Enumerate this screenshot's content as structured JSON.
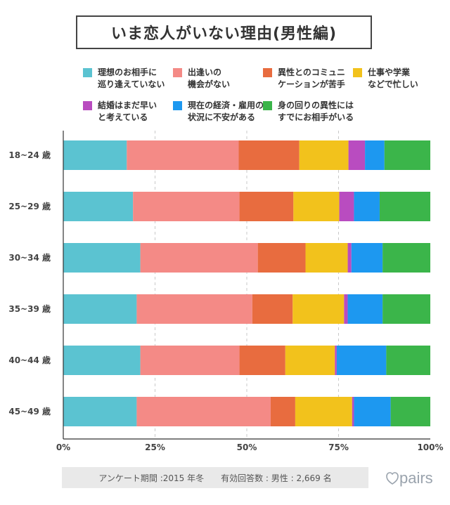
{
  "title": "いま恋人がいない理由(男性編)",
  "legend": [
    {
      "label": "理想のお相手に\n巡り逢えていない",
      "color": "#5bc3d1"
    },
    {
      "label": "出逢いの\n機会がない",
      "color": "#f48a86"
    },
    {
      "label": "異性とのコミュニ\nケーションが苦手",
      "color": "#e86c3f"
    },
    {
      "label": "仕事や学業\nなどで忙しい",
      "color": "#f2c21c"
    },
    {
      "label": "結婚はまだ早い\nと考えている",
      "color": "#b94cc0"
    },
    {
      "label": "現在の経済・雇用の\n状況に不安がある",
      "color": "#1d98f0"
    },
    {
      "label": "身の回りの異性には\nすでにお相手がいる",
      "color": "#3bb54a"
    }
  ],
  "chart_data": {
    "type": "bar",
    "orientation": "horizontal",
    "stacked": true,
    "categories": [
      "18~24 歳",
      "25~29 歳",
      "30~34 歳",
      "35~39 歳",
      "40~44 歳",
      "45~49 歳"
    ],
    "series": [
      {
        "name": "理想のお相手に巡り逢えていない",
        "values": [
          17.3,
          19.0,
          21.0,
          20.0,
          21.0,
          20.0
        ]
      },
      {
        "name": "出逢いの機会がない",
        "values": [
          30.5,
          29.0,
          32.0,
          31.5,
          27.0,
          36.5
        ]
      },
      {
        "name": "異性とのコミュニケーションが苦手",
        "values": [
          16.5,
          14.7,
          13.0,
          11.0,
          12.5,
          6.7
        ]
      },
      {
        "name": "仕事や学業などで忙しい",
        "values": [
          13.4,
          12.5,
          11.5,
          14.0,
          13.5,
          15.5
        ]
      },
      {
        "name": "結婚はまだ早いと考えている",
        "values": [
          4.5,
          4.0,
          1.0,
          1.0,
          0.5,
          0.5
        ]
      },
      {
        "name": "現在の経済・雇用の状況に不安がある",
        "values": [
          5.3,
          7.0,
          8.5,
          9.5,
          13.5,
          10.0
        ]
      },
      {
        "name": "身の回りの異性にはすでにお相手がいる",
        "values": [
          12.5,
          13.8,
          13.0,
          13.0,
          12.0,
          10.8
        ]
      }
    ],
    "xlim": [
      0,
      100
    ],
    "xticks": [
      "0%",
      "25%",
      "50%",
      "75%",
      "100%"
    ],
    "grid": true,
    "legend_position": "top"
  },
  "footer": {
    "period": "アンケート期間 :2015 年冬",
    "respondents": "有効回答数 : 男性 : 2,669 名"
  },
  "logo": {
    "text": "pairs"
  }
}
